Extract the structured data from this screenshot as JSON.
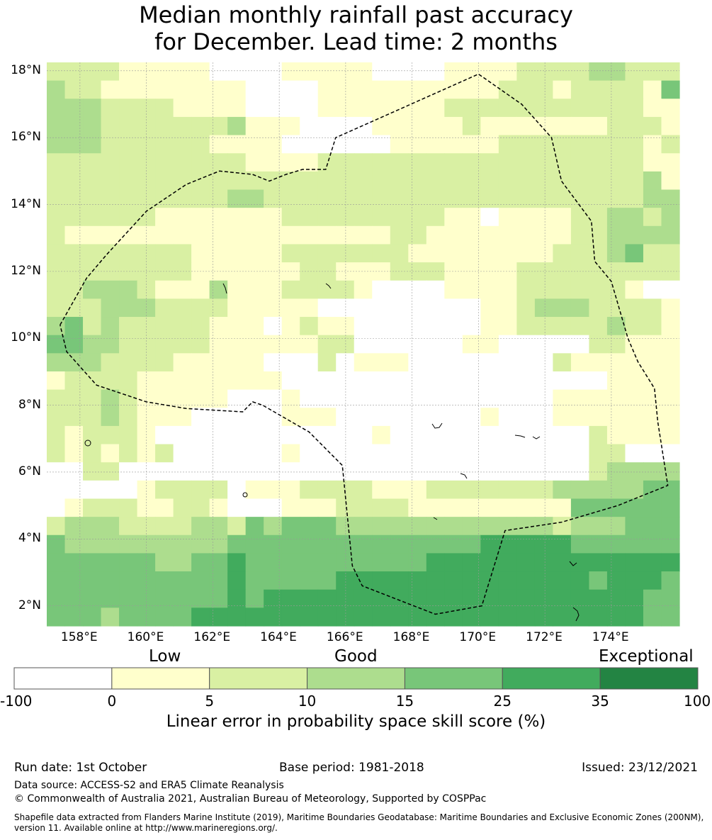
{
  "title": {
    "line1": "Median monthly rainfall past accuracy",
    "line2": "for December. Lead time: 2 months"
  },
  "map": {
    "lat_labels": [
      "18°N",
      "16°N",
      "14°N",
      "12°N",
      "10°N",
      "8°N",
      "6°N",
      "4°N",
      "2°N"
    ],
    "lon_labels": [
      "158°E",
      "160°E",
      "162°E",
      "164°E",
      "166°E",
      "168°E",
      "170°E",
      "172°E",
      "174°E"
    ],
    "lat_values": [
      18,
      16,
      14,
      12,
      10,
      8,
      6,
      4,
      2
    ],
    "lon_values": [
      158,
      160,
      162,
      164,
      166,
      168,
      170,
      172,
      174
    ],
    "extent": {
      "lon_min": 157,
      "lon_max": 176.05,
      "lat_min": 1.4,
      "lat_max": 18.25
    },
    "grid_dims": {
      "cols": 35,
      "rows": 31
    },
    "grid_rows": [
      "22221111100001111100001111222233222",
      "32211111111000011111111112221222214",
      "33322221111000011111112222222222211",
      "33322222223111000011111211111112221",
      "33322222211110000001111112222222212",
      "22222222222111122222222222222222211",
      "22222222222222222222222222222222231",
      "22222222223322222222222222222222233",
      "22222211111112222222221101111223323",
      "21111111111111111112211111111223333",
      "22222222111112222222111111112223422",
      "22222222111111221112221111222222222",
      "22333211131112222100001111222222100",
      "22233322221111100000000011233322221",
      "34232222211101211000000011222223221",
      "44332222211111122000000110000022111",
      "33322221111100020111000000002111111",
      "12222111111110000000000000000001111",
      "22232111110001000000000000001111111",
      "22232111000001110000000010001111111",
      "21222100000000000010000000000021111",
      "21212120000001000000000000000022000",
      "00220000000000000000000000000023333",
      "00000122220111222211122222223333344",
      "01222112210001112222111111111444444",
      "23332222332434443333333333332333444",
      "43333333334444444444444455555444444",
      "44444433445444444444455555555555555",
      "44444444445444445555555555555545554",
      "44444444445455555555555555555555544",
      "44434444555555555555555555555555544"
    ],
    "eez_boundary": [
      [
        157.4,
        10.4
      ],
      [
        158.2,
        11.8
      ],
      [
        158.8,
        12.5
      ],
      [
        160.0,
        13.8
      ],
      [
        161.2,
        14.6
      ],
      [
        162.2,
        15.0
      ],
      [
        163.2,
        14.9
      ],
      [
        163.7,
        14.7
      ],
      [
        164.2,
        14.9
      ],
      [
        164.7,
        15.05
      ],
      [
        165.4,
        15.05
      ],
      [
        165.7,
        16.0
      ],
      [
        170.0,
        17.9
      ],
      [
        171.3,
        17.0
      ],
      [
        172.2,
        16.0
      ],
      [
        172.5,
        14.7
      ],
      [
        173.4,
        13.5
      ],
      [
        173.5,
        12.3
      ],
      [
        174.0,
        11.7
      ],
      [
        174.5,
        10.0
      ],
      [
        174.8,
        9.3
      ],
      [
        175.3,
        8.5
      ],
      [
        175.4,
        7.5
      ],
      [
        175.7,
        5.6
      ],
      [
        174.2,
        5.0
      ],
      [
        172.5,
        4.5
      ],
      [
        170.8,
        4.25
      ],
      [
        170.1,
        2.0
      ],
      [
        168.7,
        1.75
      ],
      [
        166.5,
        2.6
      ],
      [
        166.2,
        3.2
      ],
      [
        165.9,
        6.2
      ],
      [
        164.9,
        7.2
      ],
      [
        163.5,
        8.0
      ],
      [
        163.2,
        8.1
      ],
      [
        162.9,
        7.8
      ],
      [
        161.2,
        7.9
      ],
      [
        160.0,
        8.1
      ],
      [
        158.5,
        8.6
      ],
      [
        157.6,
        9.6
      ],
      [
        157.4,
        10.4
      ]
    ]
  },
  "colorbar": {
    "categories": [
      "Low",
      "Good",
      "Exceptional"
    ],
    "ticks": [
      "-100",
      "0",
      "5",
      "10",
      "15",
      "25",
      "35",
      "100"
    ],
    "colors": [
      "#ffffff",
      "#ffffcc",
      "#d9f0a3",
      "#addd8e",
      "#78c679",
      "#41ab5d",
      "#238443"
    ],
    "label": "Linear error in probability space skill score (%)"
  },
  "footer": {
    "run_date": "Run date: 1st October",
    "base_period": "Base period: 1981-2018",
    "issued": "Issued: 23/12/2021",
    "data_source": "Data source: ACCESS-S2 and ERA5 Climate Reanalysis",
    "copyright": "© Commonwealth of Australia 2021, Australian Bureau of Meteorology, Supported by COSPPac",
    "shapefile": "Shapefile data extracted from Flanders Marine Institute (2019), Maritime Boundaries Geodatabase: Maritime Boundaries and Exclusive Economic Zones (200NM), version 11. Available online at http://www.marineregions.org/."
  }
}
